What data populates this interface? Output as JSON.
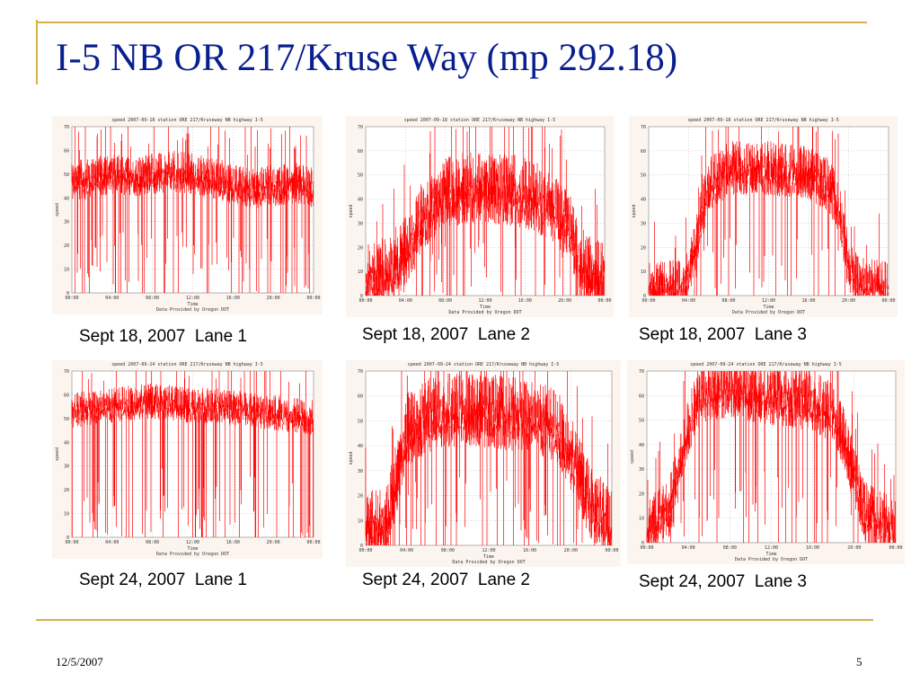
{
  "slide": {
    "title": "I-5 NB OR 217/Kruse Way (mp 292.18)",
    "footer_date": "12/5/2007",
    "page_number": "5",
    "accent_color": "#d8b04a",
    "title_color": "#0a1f8f"
  },
  "captions": [
    "Sept 18, 2007  Lane 1",
    "Sept 18, 2007  Lane 2",
    "Sept 18, 2007  Lane 3",
    "Sept 24, 2007  Lane 1",
    "Sept 24, 2007  Lane 2",
    "Sept 24, 2007  Lane 3"
  ],
  "chart_data": [
    {
      "type": "line",
      "title": "speed 2007-09-18 station ORE 217/Kruseway NB highway  I-5",
      "xlabel": "Time",
      "ylabel": "speed",
      "footer": "Data Provided by Oregon DOT",
      "xticks": [
        "00:00",
        "04:00",
        "08:00",
        "12:00",
        "16:00",
        "20:00",
        "00:00"
      ],
      "yticks": [
        "0",
        "10",
        "20",
        "30",
        "40",
        "50",
        "60",
        "70"
      ],
      "ylim": [
        0,
        70
      ],
      "grid": true,
      "series_color": "#ff0000",
      "profile": [
        [
          0,
          49
        ],
        [
          2,
          50
        ],
        [
          4,
          52
        ],
        [
          6,
          51
        ],
        [
          8,
          52
        ],
        [
          10,
          53
        ],
        [
          12,
          52
        ],
        [
          14,
          50
        ],
        [
          16,
          48
        ],
        [
          18,
          46
        ],
        [
          20,
          47
        ],
        [
          22,
          48
        ],
        [
          24,
          46
        ]
      ],
      "band": 7
    },
    {
      "type": "line",
      "title": "speed 2007-09-18 station ORE 217/Kruseway NB highway  I-5",
      "xlabel": "Time",
      "ylabel": "speed",
      "footer": "Data Provided by Oregon DOT",
      "xticks": [
        "00:00",
        "04:00",
        "08:00",
        "12:00",
        "16:00",
        "20:00",
        "00:00"
      ],
      "yticks": [
        "0",
        "10",
        "20",
        "30",
        "40",
        "50",
        "60",
        "70"
      ],
      "ylim": [
        0,
        70
      ],
      "grid": true,
      "series_color": "#ff0000",
      "profile": [
        [
          0,
          10
        ],
        [
          2,
          12
        ],
        [
          4,
          22
        ],
        [
          5,
          30
        ],
        [
          6,
          38
        ],
        [
          8,
          45
        ],
        [
          10,
          48
        ],
        [
          12,
          48
        ],
        [
          14,
          47
        ],
        [
          16,
          46
        ],
        [
          18,
          42
        ],
        [
          20,
          35
        ],
        [
          21,
          25
        ],
        [
          22,
          15
        ],
        [
          24,
          10
        ]
      ],
      "band": 12
    },
    {
      "type": "line",
      "title": "speed 2007-09-18 station ORE 217/Kruseway NB highway  I-5",
      "xlabel": "Time",
      "ylabel": "speed",
      "footer": "Data Provided by Oregon DOT",
      "xticks": [
        "00:00",
        "04:00",
        "08:00",
        "12:00",
        "16:00",
        "20:00",
        "00:00"
      ],
      "yticks": [
        "0",
        "10",
        "20",
        "30",
        "40",
        "50",
        "60",
        "70"
      ],
      "ylim": [
        0,
        70
      ],
      "grid": true,
      "series_color": "#ff0000",
      "profile": [
        [
          0,
          5
        ],
        [
          3,
          6
        ],
        [
          4,
          10
        ],
        [
          5,
          30
        ],
        [
          6,
          48
        ],
        [
          8,
          55
        ],
        [
          10,
          55
        ],
        [
          12,
          55
        ],
        [
          14,
          54
        ],
        [
          16,
          53
        ],
        [
          18,
          48
        ],
        [
          19,
          40
        ],
        [
          20,
          15
        ],
        [
          21,
          8
        ],
        [
          24,
          5
        ]
      ],
      "band": 9
    },
    {
      "type": "line",
      "title": "speed 2007-09-24 station ORE 217/Kruseway NB highway  I-5",
      "xlabel": "Time",
      "ylabel": "speed",
      "footer": "Data Provided by Oregon DOT",
      "xticks": [
        "00:00",
        "04:00",
        "08:00",
        "12:00",
        "16:00",
        "20:00",
        "00:00"
      ],
      "yticks": [
        "0",
        "10",
        "20",
        "30",
        "40",
        "50",
        "60",
        "70"
      ],
      "ylim": [
        0,
        70
      ],
      "grid": true,
      "series_color": "#ff0000",
      "profile": [
        [
          0,
          55
        ],
        [
          2,
          56
        ],
        [
          4,
          57
        ],
        [
          6,
          58
        ],
        [
          8,
          59
        ],
        [
          10,
          58
        ],
        [
          12,
          57
        ],
        [
          14,
          57
        ],
        [
          16,
          56
        ],
        [
          18,
          55
        ],
        [
          20,
          54
        ],
        [
          22,
          53
        ],
        [
          24,
          52
        ]
      ],
      "band": 6
    },
    {
      "type": "line",
      "title": "speed 2007-09-24 station ORE 217/Kruseway NB highway  I-5",
      "xlabel": "Time",
      "ylabel": "speed",
      "footer": "Data Provided by Oregon DOT",
      "xticks": [
        "00:00",
        "04:00",
        "08:00",
        "12:00",
        "16:00",
        "20:00",
        "00:00"
      ],
      "yticks": [
        "0",
        "10",
        "20",
        "30",
        "40",
        "50",
        "60",
        "70"
      ],
      "ylim": [
        0,
        70
      ],
      "grid": true,
      "series_color": "#ff0000",
      "profile": [
        [
          0,
          10
        ],
        [
          2,
          12
        ],
        [
          3,
          30
        ],
        [
          4,
          50
        ],
        [
          6,
          55
        ],
        [
          8,
          57
        ],
        [
          10,
          57
        ],
        [
          12,
          57
        ],
        [
          14,
          56
        ],
        [
          16,
          55
        ],
        [
          18,
          52
        ],
        [
          19,
          48
        ],
        [
          20,
          40
        ],
        [
          21,
          30
        ],
        [
          22,
          20
        ],
        [
          24,
          10
        ]
      ],
      "band": 12
    },
    {
      "type": "line",
      "title": "speed 2007-09-24 station ORE 217/Kruseway NB highway  I-5",
      "xlabel": "Time",
      "ylabel": "speed",
      "footer": "Data Provided by Oregon DOT",
      "xticks": [
        "00:00",
        "04:00",
        "08:00",
        "12:00",
        "16:00",
        "20:00",
        "00:00"
      ],
      "yticks": [
        "0",
        "10",
        "20",
        "30",
        "40",
        "50",
        "60",
        "70"
      ],
      "ylim": [
        0,
        70
      ],
      "grid": true,
      "series_color": "#ff0000",
      "profile": [
        [
          0,
          8
        ],
        [
          2,
          15
        ],
        [
          3,
          30
        ],
        [
          4,
          50
        ],
        [
          5,
          62
        ],
        [
          6,
          65
        ],
        [
          8,
          65
        ],
        [
          10,
          64
        ],
        [
          12,
          63
        ],
        [
          14,
          62
        ],
        [
          16,
          60
        ],
        [
          18,
          55
        ],
        [
          19,
          45
        ],
        [
          20,
          30
        ],
        [
          21,
          15
        ],
        [
          24,
          8
        ]
      ],
      "band": 10
    }
  ]
}
